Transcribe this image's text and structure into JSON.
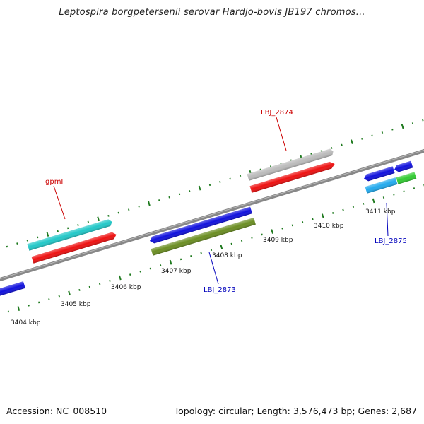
{
  "title": "Leptospira borgpetersenii serovar Hardjo-bovis JB197 chromos...",
  "footer": {
    "accession": "Accession: NC_008510",
    "summary": "Topology: circular; Length: 3,576,473 bp; Genes: 2,687"
  },
  "colors": {
    "backbone": "#888888",
    "tick": "#1f7a1f",
    "label_red": "#cc0000",
    "label_blue": "#0000bb"
  },
  "ticks": [
    {
      "kbp": 3404,
      "label": "3404 kbp"
    },
    {
      "kbp": 3405,
      "label": "3405 kbp"
    },
    {
      "kbp": 3406,
      "label": "3406 kbp"
    },
    {
      "kbp": 3407,
      "label": "3407 kbp"
    },
    {
      "kbp": 3408,
      "label": "3408 kbp"
    },
    {
      "kbp": 3409,
      "label": "3409 kbp"
    },
    {
      "kbp": 3410,
      "label": "3410 kbp"
    },
    {
      "kbp": 3411,
      "label": "3411 kbp"
    }
  ],
  "gene_labels": [
    {
      "text": "gpmI",
      "color": "#cc0000"
    },
    {
      "text": "LBJ_2874",
      "color": "#cc0000"
    },
    {
      "text": "LBJ_2873",
      "color": "#0000bb"
    },
    {
      "text": "LBJ_2875",
      "color": "#0000bb"
    }
  ]
}
